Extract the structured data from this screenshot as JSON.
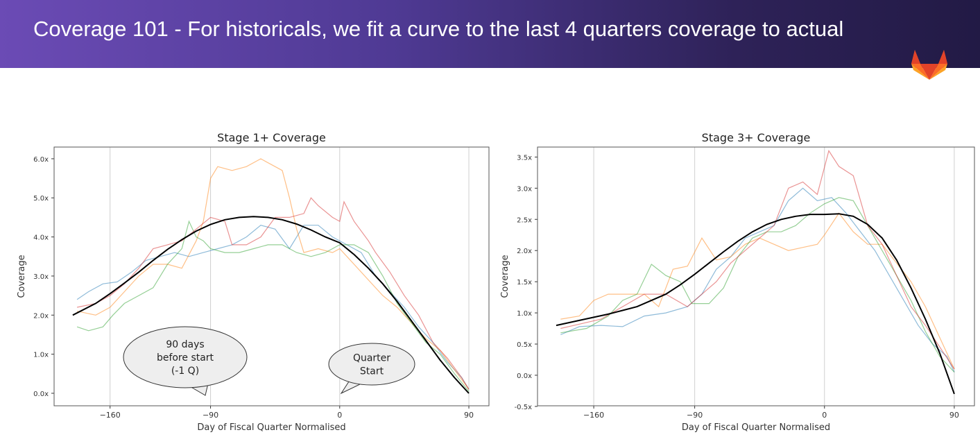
{
  "slide": {
    "title": "Coverage 101 - For historicals, we fit a curve to the last 4 quarters coverage to actual",
    "logo": "GitLab",
    "header_colors": [
      "#6b4bb5",
      "#221a45"
    ]
  },
  "callouts": {
    "first": [
      "90 days",
      "before start",
      "(-1 Q)"
    ],
    "second": [
      "Quarter",
      "Start"
    ]
  },
  "chart_data": [
    {
      "type": "line",
      "title": "Stage 1+ Coverage",
      "xlabel": "Day of Fiscal Quarter Normalised",
      "ylabel": "Coverage",
      "xlim": [
        -199,
        104
      ],
      "ylim": [
        -0.32,
        6.3
      ],
      "xticks": [
        -160,
        -90,
        0,
        90
      ],
      "yticks": [
        0,
        1,
        2,
        3,
        4,
        5,
        6
      ],
      "ytick_labels": [
        "0.0x",
        "1.0x",
        "2.0x",
        "3.0x",
        "4.0x",
        "5.0x",
        "6.0x"
      ],
      "grid": "vertical",
      "series": [
        {
          "color": "#1f77b4",
          "x": [
            -183,
            -175,
            -165,
            -155,
            -145,
            -135,
            -125,
            -115,
            -105,
            -95,
            -85,
            -75,
            -65,
            -55,
            -45,
            -35,
            -25,
            -15,
            -5,
            5,
            15,
            25,
            35,
            45,
            55,
            65,
            75,
            85,
            90
          ],
          "y": [
            2.4,
            2.6,
            2.8,
            2.85,
            3.1,
            3.4,
            3.5,
            3.6,
            3.5,
            3.6,
            3.7,
            3.8,
            4.0,
            4.3,
            4.2,
            3.7,
            4.3,
            4.3,
            4.0,
            3.8,
            3.6,
            3.0,
            2.6,
            2.2,
            1.7,
            1.3,
            0.8,
            0.4,
            0.1
          ]
        },
        {
          "color": "#ff7f0e",
          "x": [
            -183,
            -170,
            -160,
            -150,
            -140,
            -130,
            -120,
            -110,
            -100,
            -95,
            -90,
            -85,
            -75,
            -65,
            -55,
            -45,
            -40,
            -35,
            -30,
            -25,
            -15,
            -5,
            0,
            10,
            20,
            30,
            40,
            50,
            60,
            70,
            80,
            90
          ],
          "y": [
            2.1,
            2.0,
            2.2,
            2.6,
            3.0,
            3.3,
            3.3,
            3.2,
            3.9,
            4.4,
            5.5,
            5.8,
            5.7,
            5.8,
            6.0,
            5.8,
            5.7,
            5.0,
            4.2,
            3.6,
            3.7,
            3.6,
            3.7,
            3.3,
            2.9,
            2.5,
            2.2,
            1.8,
            1.4,
            1.1,
            0.6,
            0.1
          ]
        },
        {
          "color": "#2ca02c",
          "x": [
            -183,
            -175,
            -165,
            -158,
            -150,
            -140,
            -130,
            -120,
            -110,
            -105,
            -100,
            -95,
            -90,
            -80,
            -70,
            -60,
            -50,
            -40,
            -30,
            -20,
            -10,
            0,
            10,
            20,
            30,
            40,
            50,
            60,
            70,
            80,
            90
          ],
          "y": [
            1.7,
            1.6,
            1.7,
            2.0,
            2.3,
            2.5,
            2.7,
            3.3,
            3.7,
            4.4,
            4.0,
            3.9,
            3.7,
            3.6,
            3.6,
            3.7,
            3.8,
            3.8,
            3.6,
            3.5,
            3.6,
            3.8,
            3.8,
            3.6,
            3.0,
            2.3,
            1.8,
            1.3,
            1.0,
            0.5,
            0.05
          ]
        },
        {
          "color": "#d62728",
          "x": [
            -183,
            -170,
            -160,
            -150,
            -140,
            -130,
            -120,
            -110,
            -100,
            -90,
            -80,
            -75,
            -65,
            -55,
            -45,
            -35,
            -25,
            -20,
            -15,
            -5,
            0,
            3,
            10,
            20,
            25,
            35,
            45,
            55,
            65,
            75,
            85,
            90
          ],
          "y": [
            2.2,
            2.3,
            2.5,
            2.8,
            3.2,
            3.7,
            3.8,
            3.9,
            4.2,
            4.5,
            4.4,
            3.8,
            3.8,
            4.0,
            4.5,
            4.5,
            4.6,
            5.0,
            4.8,
            4.5,
            4.4,
            4.9,
            4.4,
            3.9,
            3.6,
            3.1,
            2.5,
            2.0,
            1.3,
            0.9,
            0.4,
            0.1
          ]
        }
      ],
      "fit": {
        "color": "#000000",
        "x": [
          -186,
          -170,
          -160,
          -150,
          -140,
          -130,
          -120,
          -110,
          -100,
          -90,
          -80,
          -70,
          -60,
          -50,
          -40,
          -30,
          -20,
          -10,
          0,
          10,
          20,
          30,
          40,
          50,
          60,
          70,
          80,
          90
        ],
        "y": [
          2.0,
          2.3,
          2.55,
          2.82,
          3.1,
          3.4,
          3.68,
          3.93,
          4.15,
          4.32,
          4.44,
          4.5,
          4.52,
          4.5,
          4.44,
          4.33,
          4.18,
          4.0,
          3.85,
          3.55,
          3.2,
          2.8,
          2.35,
          1.85,
          1.35,
          0.85,
          0.4,
          0.0
        ]
      }
    },
    {
      "type": "line",
      "title": "Stage 3+ Coverage",
      "xlabel": "Day of Fiscal Quarter Normalised",
      "ylabel": "Coverage",
      "xlim": [
        -199,
        104
      ],
      "ylim": [
        -0.49,
        3.66
      ],
      "xticks": [
        -160,
        -90,
        0,
        90
      ],
      "yticks": [
        -0.5,
        0,
        0.5,
        1,
        1.5,
        2,
        2.5,
        3,
        3.5
      ],
      "ytick_labels": [
        "-0.5x",
        "0.0x",
        "0.5x",
        "1.0x",
        "1.5x",
        "2.0x",
        "2.5x",
        "3.0x",
        "3.5x"
      ],
      "grid": "vertical",
      "series": [
        {
          "color": "#1f77b4",
          "x": [
            -183,
            -170,
            -155,
            -140,
            -125,
            -110,
            -95,
            -85,
            -75,
            -65,
            -55,
            -45,
            -35,
            -25,
            -15,
            -5,
            5,
            15,
            25,
            35,
            45,
            55,
            65,
            75,
            85,
            90
          ],
          "y": [
            0.65,
            0.78,
            0.8,
            0.78,
            0.95,
            1.0,
            1.1,
            1.3,
            1.7,
            1.9,
            2.2,
            2.3,
            2.4,
            2.8,
            3.0,
            2.8,
            2.85,
            2.6,
            2.3,
            2.0,
            1.6,
            1.2,
            0.8,
            0.5,
            0.3,
            0.05
          ]
        },
        {
          "color": "#ff7f0e",
          "x": [
            -183,
            -170,
            -160,
            -150,
            -135,
            -125,
            -115,
            -105,
            -95,
            -85,
            -75,
            -65,
            -55,
            -45,
            -35,
            -25,
            -15,
            -5,
            0,
            10,
            20,
            30,
            40,
            50,
            60,
            70,
            80,
            90
          ],
          "y": [
            0.9,
            0.95,
            1.2,
            1.3,
            1.3,
            1.3,
            1.1,
            1.7,
            1.75,
            2.2,
            1.85,
            1.9,
            2.1,
            2.2,
            2.1,
            2.0,
            2.05,
            2.1,
            2.25,
            2.6,
            2.3,
            2.1,
            2.1,
            1.8,
            1.5,
            1.1,
            0.6,
            0.1
          ]
        },
        {
          "color": "#2ca02c",
          "x": [
            -183,
            -165,
            -150,
            -140,
            -130,
            -120,
            -110,
            -100,
            -92,
            -80,
            -70,
            -60,
            -50,
            -40,
            -30,
            -20,
            -10,
            0,
            10,
            20,
            30,
            40,
            50,
            60,
            70,
            80,
            90
          ],
          "y": [
            0.68,
            0.75,
            0.95,
            1.2,
            1.3,
            1.78,
            1.6,
            1.5,
            1.15,
            1.15,
            1.4,
            1.9,
            2.2,
            2.3,
            2.3,
            2.4,
            2.6,
            2.75,
            2.85,
            2.8,
            2.4,
            2.0,
            1.6,
            1.2,
            0.7,
            0.3,
            0.05
          ]
        },
        {
          "color": "#d62728",
          "x": [
            -183,
            -170,
            -155,
            -140,
            -125,
            -110,
            -95,
            -85,
            -75,
            -65,
            -55,
            -45,
            -35,
            -25,
            -15,
            -5,
            3,
            10,
            20,
            30,
            40,
            50,
            60,
            70,
            80,
            90
          ],
          "y": [
            0.75,
            0.82,
            0.9,
            1.1,
            1.3,
            1.3,
            1.1,
            1.3,
            1.5,
            1.8,
            2.0,
            2.2,
            2.4,
            3.0,
            3.1,
            2.9,
            3.6,
            3.35,
            3.2,
            2.4,
            2.1,
            1.6,
            1.1,
            0.8,
            0.45,
            0.1
          ]
        }
      ],
      "fit": {
        "color": "#000000",
        "x": [
          -186,
          -170,
          -160,
          -150,
          -140,
          -130,
          -120,
          -110,
          -100,
          -90,
          -80,
          -70,
          -60,
          -50,
          -40,
          -30,
          -20,
          -10,
          0,
          10,
          20,
          30,
          40,
          50,
          60,
          70,
          80,
          90
        ],
        "y": [
          0.8,
          0.88,
          0.93,
          0.98,
          1.04,
          1.1,
          1.2,
          1.3,
          1.45,
          1.62,
          1.8,
          1.98,
          2.15,
          2.3,
          2.42,
          2.5,
          2.55,
          2.58,
          2.58,
          2.59,
          2.55,
          2.42,
          2.2,
          1.85,
          1.4,
          0.9,
          0.35,
          -0.3
        ]
      }
    }
  ]
}
